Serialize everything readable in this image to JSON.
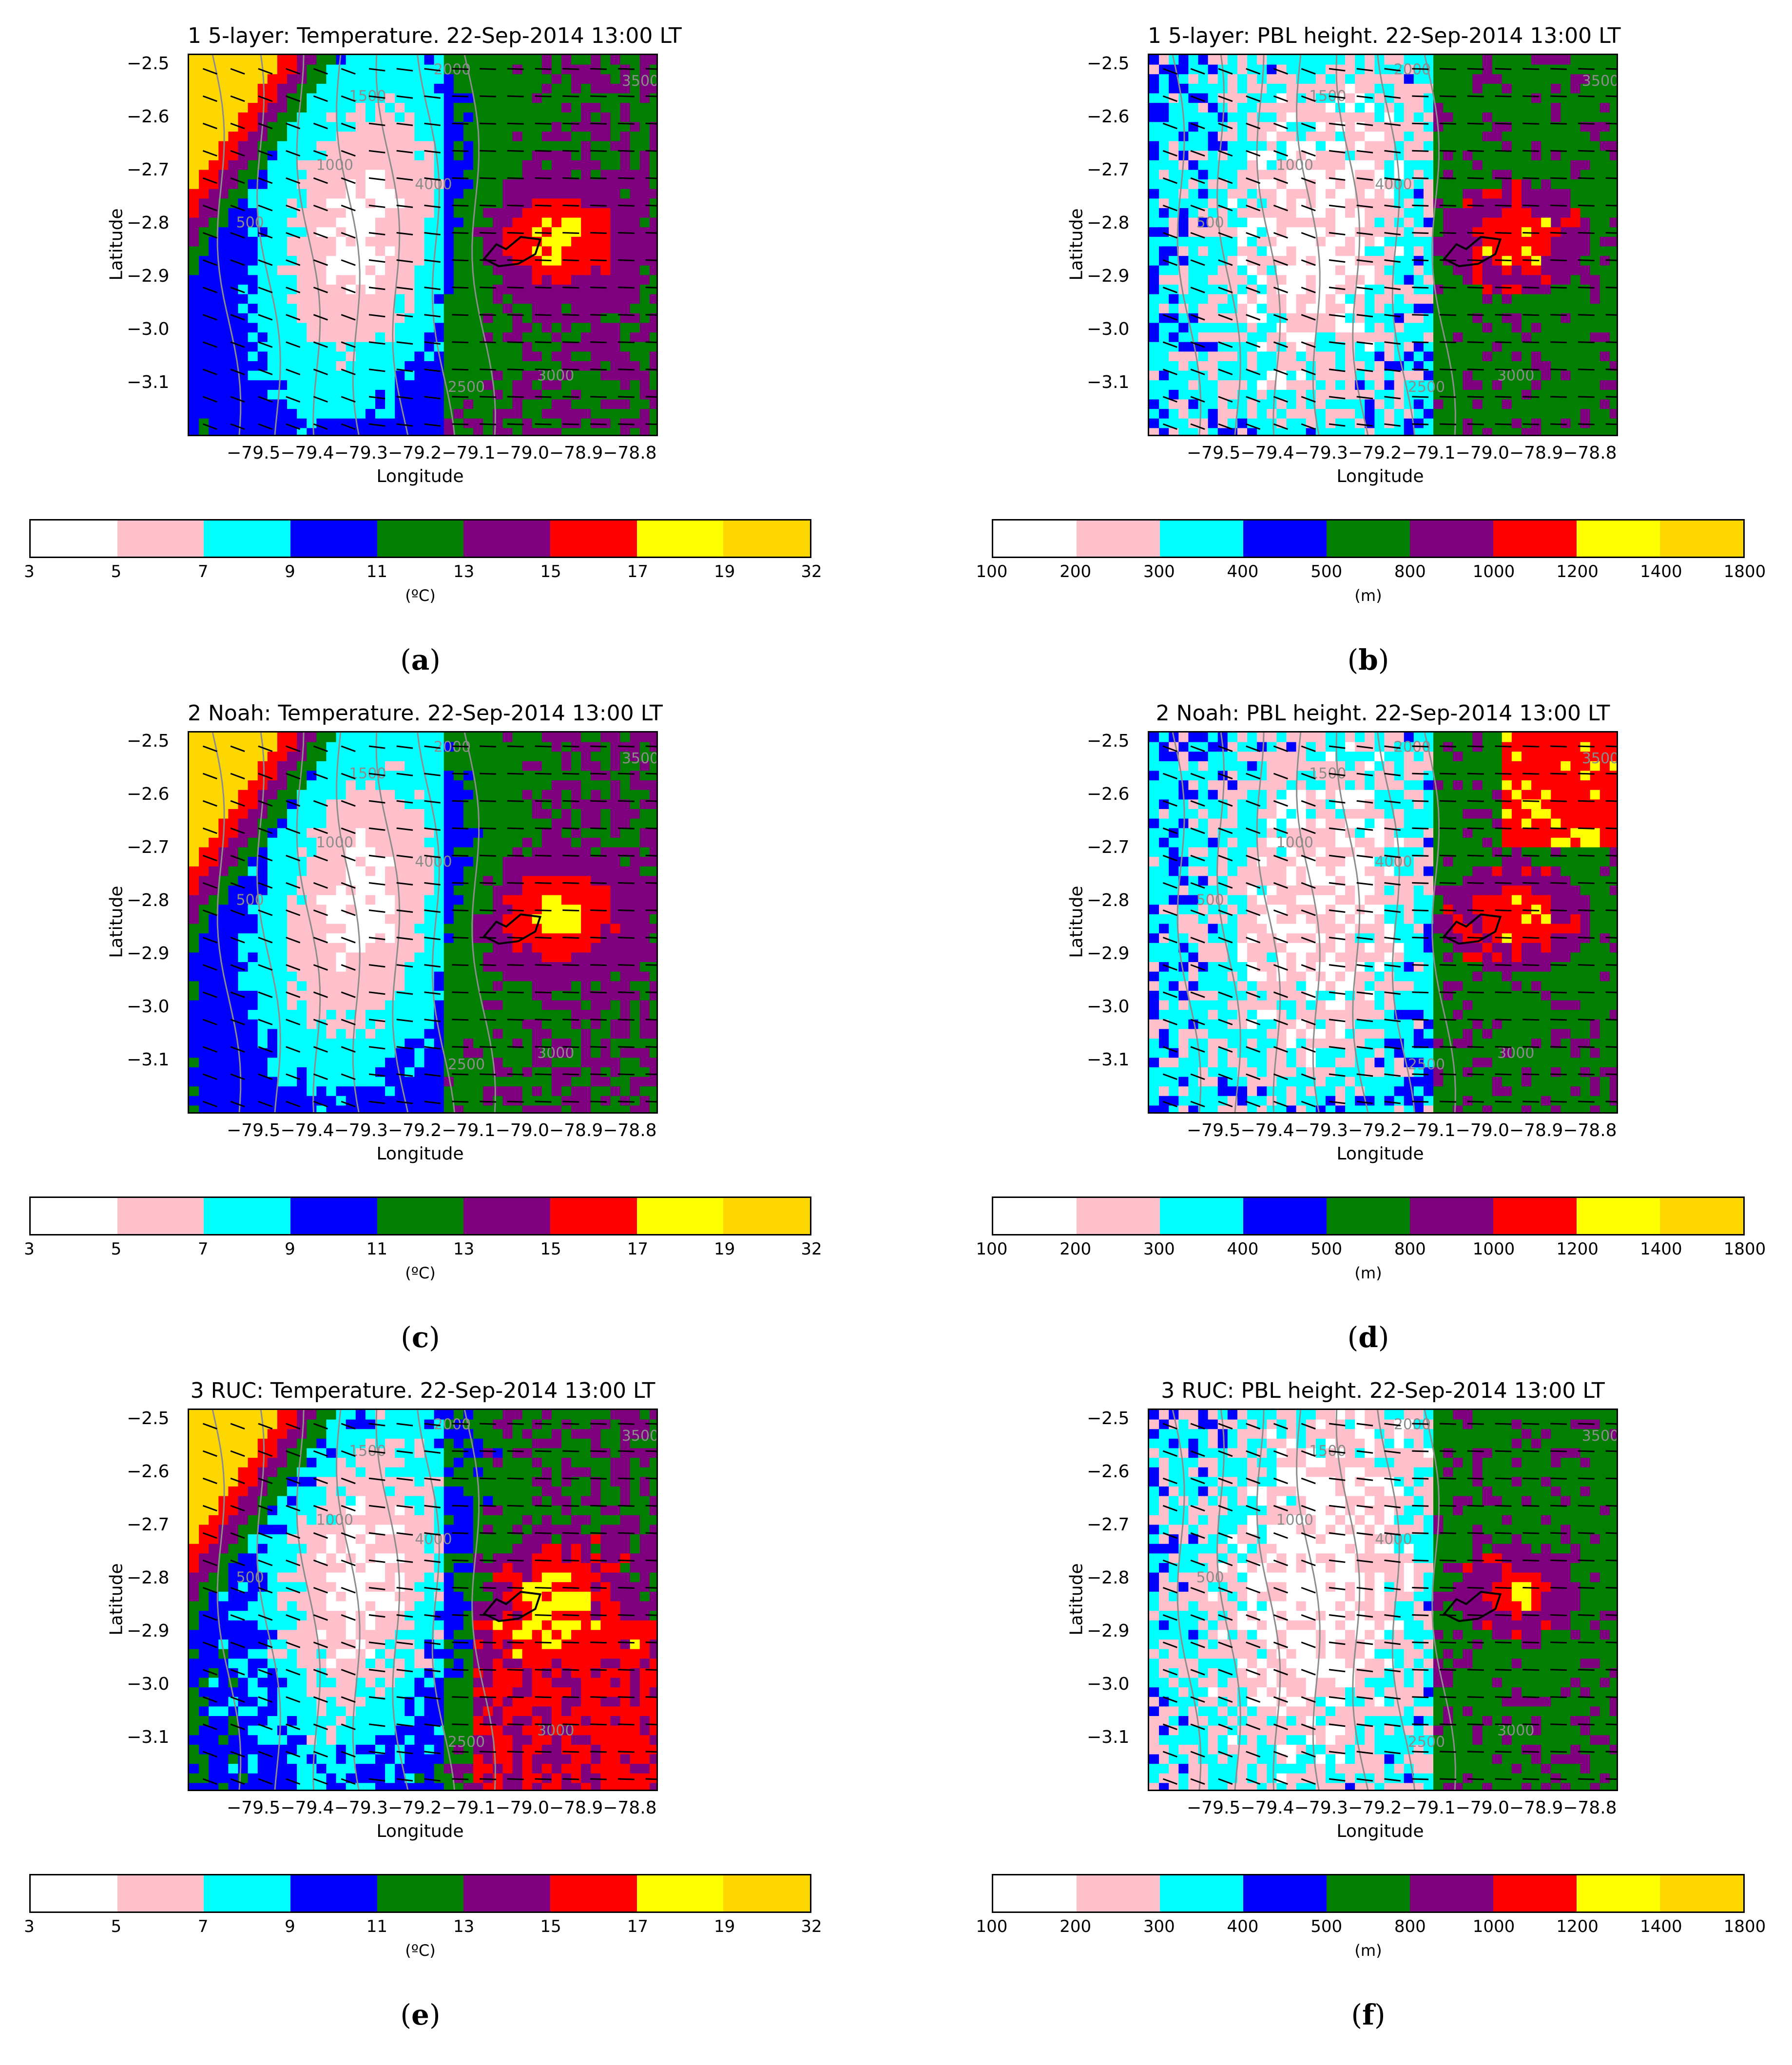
{
  "chart_data": [
    {
      "type": "heatmap",
      "panel_label": "a",
      "title": "1 5-layer: Temperature. 22-Sep-2014 13:00 LT",
      "xlabel": "Longitude",
      "ylabel": "Latitude",
      "unit_label": "(ºC)",
      "xticks": [
        "−79.5",
        "−79.4",
        "−79.3",
        "−79.2",
        "−79.1",
        "−79.0",
        "−78.9",
        "−78.8"
      ],
      "yticks": [
        "−2.5",
        "−2.6",
        "−2.7",
        "−2.8",
        "−2.9",
        "−3.0",
        "−3.1"
      ],
      "xlim": [
        -79.6,
        -78.75
      ],
      "ylim": [
        -3.2,
        -2.48
      ],
      "colorbar_levels": [
        "3",
        "5",
        "7",
        "9",
        "11",
        "13",
        "15",
        "17",
        "19",
        "32"
      ],
      "colorbar_colors": [
        "#ffffff",
        "#ffc0cb",
        "#00ffff",
        "#0000ff",
        "#007f00",
        "#7f007f",
        "#ff0000",
        "#ffff00",
        "#ffd700"
      ]
    },
    {
      "type": "heatmap",
      "panel_label": "b",
      "title": "1 5-layer: PBL height. 22-Sep-2014 13:00 LT",
      "xlabel": "Longitude",
      "ylabel": "Latitude",
      "unit_label": "(m)",
      "xticks": [
        "−79.5",
        "−79.4",
        "−79.3",
        "−79.2",
        "−79.1",
        "−79.0",
        "−78.9",
        "−78.8"
      ],
      "yticks": [
        "−2.5",
        "−2.6",
        "−2.7",
        "−2.8",
        "−2.9",
        "−3.0",
        "−3.1"
      ],
      "xlim": [
        -79.6,
        -78.75
      ],
      "ylim": [
        -3.2,
        -2.48
      ],
      "colorbar_levels": [
        "100",
        "200",
        "300",
        "400",
        "500",
        "800",
        "1000",
        "1200",
        "1400",
        "1800"
      ],
      "colorbar_colors": [
        "#ffffff",
        "#ffc0cb",
        "#00ffff",
        "#0000ff",
        "#007f00",
        "#7f007f",
        "#ff0000",
        "#ffff00",
        "#ffd700"
      ]
    },
    {
      "type": "heatmap",
      "panel_label": "c",
      "title": "2 Noah: Temperature. 22-Sep-2014 13:00 LT",
      "xlabel": "Longitude",
      "ylabel": "Latitude",
      "unit_label": "(ºC)",
      "xticks": [
        "−79.5",
        "−79.4",
        "−79.3",
        "−79.2",
        "−79.1",
        "−79.0",
        "−78.9",
        "−78.8"
      ],
      "yticks": [
        "−2.5",
        "−2.6",
        "−2.7",
        "−2.8",
        "−2.9",
        "−3.0",
        "−3.1"
      ],
      "xlim": [
        -79.6,
        -78.75
      ],
      "ylim": [
        -3.2,
        -2.48
      ],
      "colorbar_levels": [
        "3",
        "5",
        "7",
        "9",
        "11",
        "13",
        "15",
        "17",
        "19",
        "32"
      ],
      "colorbar_colors": [
        "#ffffff",
        "#ffc0cb",
        "#00ffff",
        "#0000ff",
        "#007f00",
        "#7f007f",
        "#ff0000",
        "#ffff00",
        "#ffd700"
      ]
    },
    {
      "type": "heatmap",
      "panel_label": "d",
      "title": "2 Noah: PBL height. 22-Sep-2014 13:00 LT",
      "xlabel": "Longitude",
      "ylabel": "Latitude",
      "unit_label": "(m)",
      "xticks": [
        "−79.5",
        "−79.4",
        "−79.3",
        "−79.2",
        "−79.1",
        "−79.0",
        "−78.9",
        "−78.8"
      ],
      "yticks": [
        "−2.5",
        "−2.6",
        "−2.7",
        "−2.8",
        "−2.9",
        "−3.0",
        "−3.1"
      ],
      "xlim": [
        -79.6,
        -78.75
      ],
      "ylim": [
        -3.2,
        -2.48
      ],
      "colorbar_levels": [
        "100",
        "200",
        "300",
        "400",
        "500",
        "800",
        "1000",
        "1200",
        "1400",
        "1800"
      ],
      "colorbar_colors": [
        "#ffffff",
        "#ffc0cb",
        "#00ffff",
        "#0000ff",
        "#007f00",
        "#7f007f",
        "#ff0000",
        "#ffff00",
        "#ffd700"
      ]
    },
    {
      "type": "heatmap",
      "panel_label": "e",
      "title": "3 RUC: Temperature. 22-Sep-2014 13:00 LT",
      "xlabel": "Longitude",
      "ylabel": "Latitude",
      "unit_label": "(ºC)",
      "xticks": [
        "−79.5",
        "−79.4",
        "−79.3",
        "−79.2",
        "−79.1",
        "−79.0",
        "−78.9",
        "−78.8"
      ],
      "yticks": [
        "−2.5",
        "−2.6",
        "−2.7",
        "−2.8",
        "−2.9",
        "−3.0",
        "−3.1"
      ],
      "xlim": [
        -79.6,
        -78.75
      ],
      "ylim": [
        -3.2,
        -2.48
      ],
      "colorbar_levels": [
        "3",
        "5",
        "7",
        "9",
        "11",
        "13",
        "15",
        "17",
        "19",
        "32"
      ],
      "colorbar_colors": [
        "#ffffff",
        "#ffc0cb",
        "#00ffff",
        "#0000ff",
        "#007f00",
        "#7f007f",
        "#ff0000",
        "#ffff00",
        "#ffd700"
      ]
    },
    {
      "type": "heatmap",
      "panel_label": "f",
      "title": "3 RUC: PBL height. 22-Sep-2014 13:00 LT",
      "xlabel": "Longitude",
      "ylabel": "Latitude",
      "unit_label": "(m)",
      "xticks": [
        "−79.5",
        "−79.4",
        "−79.3",
        "−79.2",
        "−79.1",
        "−79.0",
        "−78.9",
        "−78.8"
      ],
      "yticks": [
        "−2.5",
        "−2.6",
        "−2.7",
        "−2.8",
        "−2.9",
        "−3.0",
        "−3.1"
      ],
      "xlim": [
        -79.6,
        -78.75
      ],
      "ylim": [
        -3.2,
        -2.48
      ],
      "colorbar_levels": [
        "100",
        "200",
        "300",
        "400",
        "500",
        "800",
        "1000",
        "1200",
        "1400",
        "1800"
      ],
      "colorbar_colors": [
        "#ffffff",
        "#ffc0cb",
        "#00ffff",
        "#0000ff",
        "#007f00",
        "#7f007f",
        "#ff0000",
        "#ffff00",
        "#ffd700"
      ]
    }
  ],
  "contour_labels": [
    "500",
    "1000",
    "1500",
    "2000",
    "2500",
    "3000",
    "3500",
    "4000"
  ]
}
